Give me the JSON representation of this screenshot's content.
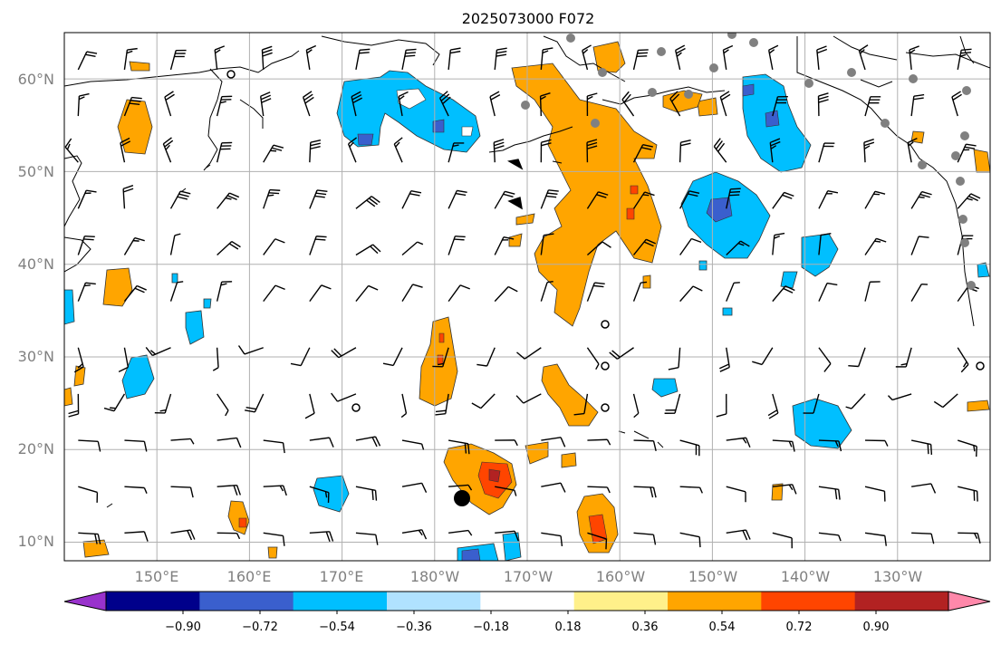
{
  "title": "2025073000 F072",
  "lat_labels": [
    "10°N",
    "20°N",
    "30°N",
    "40°N",
    "50°N",
    "60°N"
  ],
  "lon_labels": [
    "150°E",
    "160°E",
    "170°E",
    "180°W",
    "170°W",
    "160°W",
    "150°W",
    "140°W",
    "130°W"
  ],
  "colorbar": {
    "levels": [
      "−0.90",
      "−0.72",
      "−0.54",
      "−0.36",
      "−0.18",
      "0.18",
      "0.36",
      "0.54",
      "0.72",
      "0.90"
    ],
    "colors": [
      "#9932cc",
      "#00008b",
      "#3a5fcd",
      "#00bfff",
      "#b0e2ff",
      "#ffffff",
      "#fff08a",
      "#ffa500",
      "#ff4500",
      "#b22222",
      "#ff88aa"
    ]
  },
  "colors": {
    "positive_fill": "#ffa500",
    "positive_strong": "#ff4500",
    "positive_extreme": "#b22222",
    "negative_fill": "#00bfff",
    "negative_strong": "#3a5fcd",
    "grid": "#b0b0b0",
    "station": "#808080"
  },
  "map": {
    "lon_range_east": [
      140,
      240
    ],
    "lat_range": [
      8,
      65
    ],
    "grid_lons": [
      150,
      160,
      170,
      180,
      190,
      200,
      210,
      220,
      230
    ],
    "grid_lats": [
      10,
      20,
      30,
      40,
      50,
      60
    ]
  }
}
